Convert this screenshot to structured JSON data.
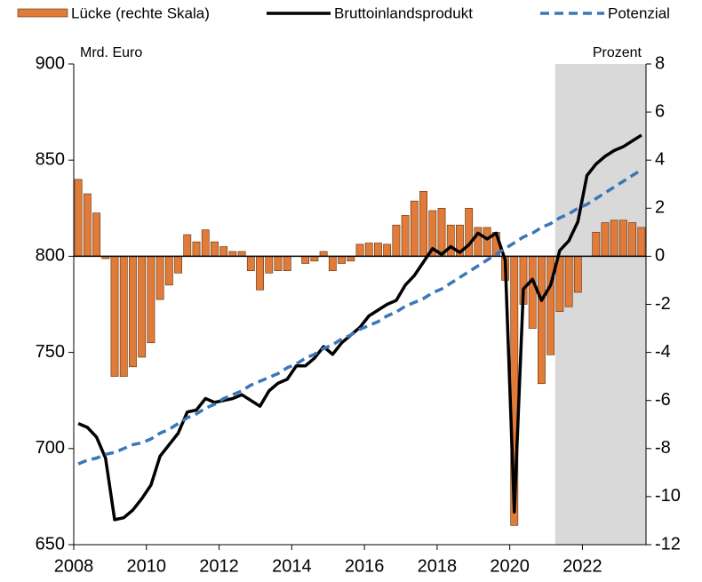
{
  "chart_data": {
    "type": "bar-line",
    "y_label": "Mrd. Euro",
    "y2_label": "Prozent",
    "x": [
      2008,
      2008.25,
      2008.5,
      2008.75,
      2009,
      2009.25,
      2009.5,
      2009.75,
      2010,
      2010.25,
      2010.5,
      2010.75,
      2011,
      2011.25,
      2011.5,
      2011.75,
      2012,
      2012.25,
      2012.5,
      2012.75,
      2013,
      2013.25,
      2013.5,
      2013.75,
      2014,
      2014.25,
      2014.5,
      2014.75,
      2015,
      2015.25,
      2015.5,
      2015.75,
      2016,
      2016.25,
      2016.5,
      2016.75,
      2017,
      2017.25,
      2017.5,
      2017.75,
      2018,
      2018.25,
      2018.5,
      2018.75,
      2019,
      2019.25,
      2019.5,
      2019.75,
      2020,
      2020.25,
      2020.5,
      2020.75,
      2021,
      2021.25,
      2021.5,
      2021.75,
      2022,
      2022.25,
      2022.5,
      2022.75,
      2023,
      2023.25,
      2023.5
    ],
    "series": [
      {
        "name": "Lücke (rechte Skala)",
        "type": "bar",
        "axis": "y2",
        "color": "#e07b39",
        "values": [
          3.2,
          2.6,
          1.8,
          -0.1,
          -5.0,
          -5.0,
          -4.6,
          -4.2,
          -3.6,
          -1.8,
          -1.2,
          -0.7,
          0.9,
          0.6,
          1.1,
          0.6,
          0.4,
          0.2,
          0.2,
          -0.6,
          -1.4,
          -0.7,
          -0.6,
          -0.6,
          0,
          -0.3,
          -0.2,
          0.2,
          -0.6,
          -0.3,
          -0.2,
          0.5,
          0.55,
          0.55,
          0.5,
          1.3,
          1.7,
          2.3,
          2.7,
          1.9,
          2.0,
          1.3,
          1.3,
          2.0,
          1.2,
          1.2,
          1.0,
          -1.0,
          -11.2,
          -2.0,
          -3.0,
          -5.3,
          -4.1,
          -2.3,
          -2.1,
          -1.5,
          0,
          1.0,
          1.4,
          1.5,
          1.5,
          1.4,
          1.2
        ]
      },
      {
        "name": "Bruttoinlandsprodukt",
        "type": "line",
        "color": "#000000",
        "values": [
          713,
          711,
          706,
          695,
          663,
          664,
          668,
          674,
          681,
          696,
          702,
          708,
          719,
          720,
          726,
          724,
          725,
          726,
          728,
          725,
          722,
          730,
          734,
          736,
          743,
          743,
          747,
          753,
          749,
          755,
          759,
          763,
          769,
          772,
          775,
          777,
          785,
          790,
          797,
          804,
          801,
          805,
          802,
          806,
          812,
          809,
          812,
          798,
          667,
          783,
          788,
          777,
          785,
          803,
          808,
          818,
          842,
          848,
          852,
          855,
          857,
          860,
          863
        ]
      },
      {
        "name": "Potenzial",
        "type": "dashed-line",
        "color": "#3a77b8",
        "values": [
          692,
          694,
          695,
          697,
          698,
          700,
          702,
          703,
          705,
          708,
          710,
          713,
          716,
          718,
          721,
          723,
          726,
          728,
          730,
          733,
          735,
          737,
          739,
          742,
          744,
          747,
          749,
          752,
          754,
          757,
          759,
          762,
          764,
          766,
          769,
          771,
          774,
          776,
          778,
          781,
          783,
          786,
          789,
          792,
          795,
          798,
          801,
          804,
          807,
          810,
          812,
          815,
          817,
          820,
          822,
          825,
          827,
          830,
          833,
          836,
          839,
          842,
          845
        ]
      }
    ],
    "xlim": [
      2008,
      2023.75
    ],
    "xticks": [
      2008,
      2010,
      2012,
      2014,
      2016,
      2018,
      2020,
      2022
    ],
    "ylim": [
      650,
      900
    ],
    "yticks": [
      650,
      700,
      750,
      800,
      850,
      900
    ],
    "y2lim": [
      -12,
      8
    ],
    "y2ticks": [
      -12,
      -10,
      -8,
      -6,
      -4,
      -2,
      0,
      2,
      4,
      6,
      8
    ],
    "shaded_region": [
      2021.25,
      2023.75
    ],
    "shade_color": "#d9d9d9",
    "baseline": 800,
    "grid": false
  }
}
